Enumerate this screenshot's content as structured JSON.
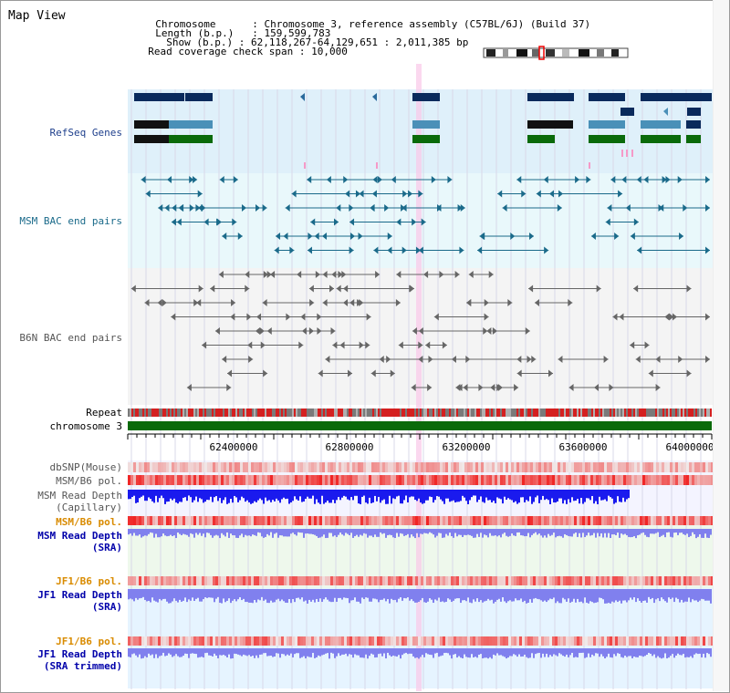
{
  "page": {
    "title": "Map View"
  },
  "info": {
    "chromosome_label": "Chromosome",
    "chromosome_value": "Chromosome 3, reference assembly (C57BL/6J) (Build 37)",
    "length_label": "Length (b.p.)",
    "length_value": "159,599,783",
    "show_label": "Show (b.p.)",
    "show_value": "62,118,267-64,129,651 : 2,011,385 bp",
    "coverage_label": "Read coverage check span",
    "coverage_value": "10,000"
  },
  "tracks": {
    "refseq": "RefSeq Genes",
    "msm_bac": "MSM BAC end pairs",
    "b6n_bac": "B6N BAC end pairs",
    "repeat": "Repeat",
    "chromosome": "chromosome 3",
    "dbsnp": "dbSNP(Mouse)",
    "msm_b6_pol_1": "MSM/B6 pol.",
    "msm_read_depth_cap_1": "MSM Read Depth",
    "msm_read_depth_cap_2": "(Capillary)",
    "msm_b6_pol_2": "MSM/B6 pol.",
    "msm_read_depth_sra_1": "MSM Read Depth",
    "msm_read_depth_sra_2": "(SRA)",
    "jf1_b6_pol_1": "JF1/B6 pol.",
    "jf1_read_depth_sra_1": "JF1 Read Depth",
    "jf1_read_depth_sra_2": "(SRA)",
    "jf1_b6_pol_2": "JF1/B6 pol.",
    "jf1_read_depth_trim_1": "JF1 Read Depth",
    "jf1_read_depth_trim_2": "(SRA trimmed)"
  },
  "axis": {
    "ticks": [
      "62400000",
      "62800000",
      "63200000",
      "63600000",
      "64000000"
    ]
  },
  "colors": {
    "refseq_dark": "#0a2a5c",
    "refseq_mid": "#4a90b8",
    "refseq_green": "#0a6a0a",
    "bac_teal": "#1a6a8a",
    "bac_gray": "#666666",
    "chromosome_green": "#0a6a0a",
    "depth_blue": "#1a1aee",
    "depth_lavender": "#8080ee",
    "snp_red": "#ee2222"
  }
}
